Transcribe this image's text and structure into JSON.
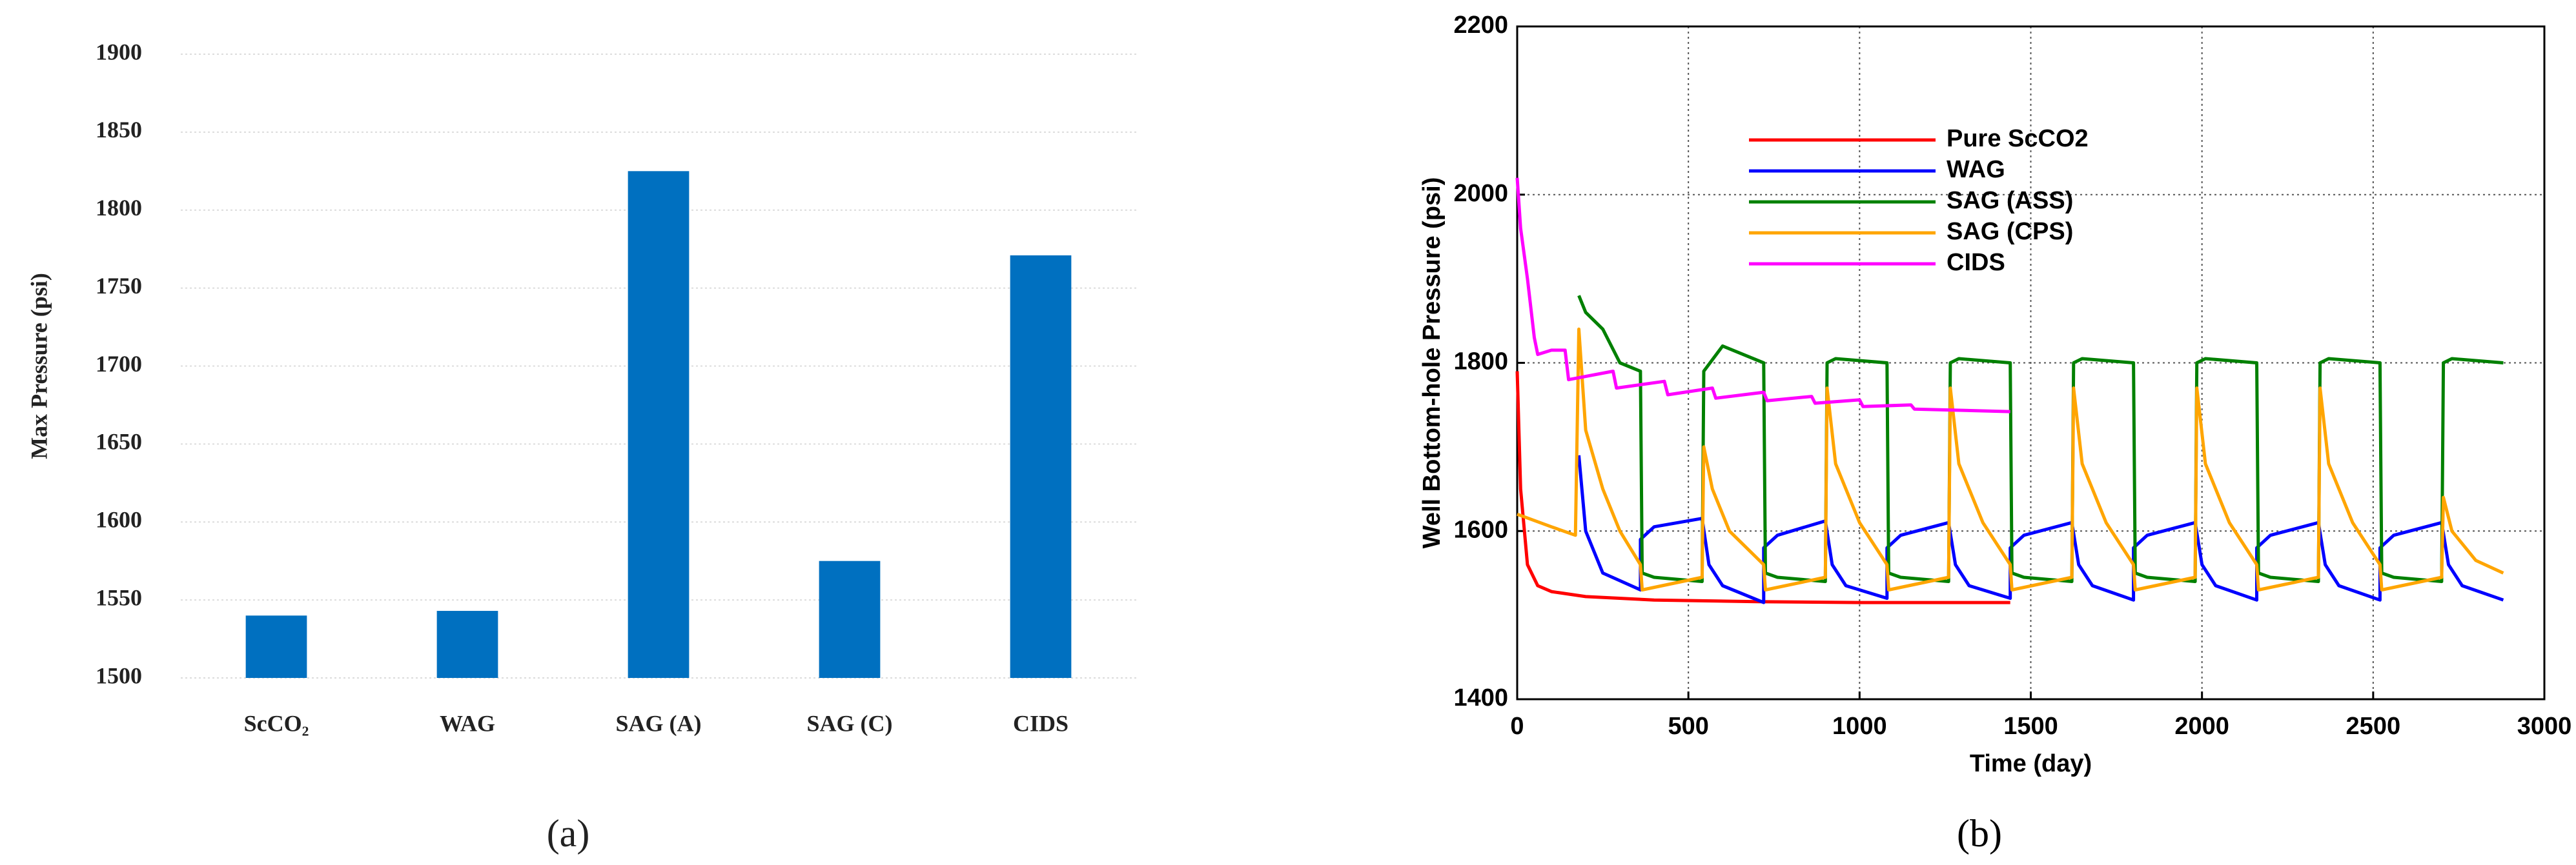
{
  "chart_data": [
    {
      "type": "bar",
      "ylabel": "Max Pressure (psi)",
      "caption": "(a)",
      "categories": [
        "ScCO₂",
        "WAG",
        "SAG (A)",
        "SAG (C)",
        "CIDS"
      ],
      "values": [
        1540,
        1543,
        1825,
        1575,
        1771
      ],
      "color": "#0070c0",
      "ylim": [
        1500,
        1900
      ],
      "yticks": [
        1500,
        1550,
        1600,
        1650,
        1700,
        1750,
        1800,
        1850,
        1900
      ],
      "grid": true
    },
    {
      "type": "line",
      "xlabel": "Time (day)",
      "ylabel": "Well Bottom-hole Pressure (psi)",
      "caption": "(b)",
      "xlim": [
        0,
        3000
      ],
      "xticks": [
        0,
        500,
        1000,
        1500,
        2000,
        2500,
        3000
      ],
      "ylim": [
        1400,
        2200
      ],
      "yticks": [
        1400,
        1600,
        1800,
        2000,
        2200
      ],
      "grid": true,
      "series": [
        {
          "name": "Pure ScCO2",
          "color": "#ff0000",
          "x": [
            0,
            10,
            30,
            60,
            100,
            200,
            400,
            700,
            1000,
            1440
          ],
          "values": [
            1790,
            1650,
            1560,
            1535,
            1528,
            1522,
            1518,
            1516,
            1515,
            1515
          ]
        },
        {
          "name": "WAG",
          "color": "#0000ff",
          "x": [
            180,
            200,
            250,
            360,
            360,
            400,
            540,
            560,
            600,
            720,
            720,
            760,
            900,
            920,
            960,
            1080,
            1080,
            1120,
            1260,
            1280,
            1320,
            1440,
            1440,
            1480,
            1620,
            1640,
            1680,
            1800,
            1800,
            1840,
            1980,
            2000,
            2040,
            2160,
            2160,
            2200,
            2340,
            2360,
            2400,
            2520,
            2520,
            2560,
            2700,
            2720,
            2760,
            2880
          ],
          "values": [
            1690,
            1600,
            1550,
            1530,
            1590,
            1605,
            1615,
            1560,
            1535,
            1515,
            1580,
            1595,
            1612,
            1560,
            1535,
            1520,
            1580,
            1595,
            1610,
            1560,
            1535,
            1520,
            1580,
            1595,
            1610,
            1560,
            1535,
            1518,
            1580,
            1595,
            1610,
            1560,
            1535,
            1518,
            1580,
            1595,
            1610,
            1560,
            1535,
            1518,
            1580,
            1595,
            1610,
            1560,
            1535,
            1518
          ]
        },
        {
          "name": "SAG (ASS)",
          "color": "#008000",
          "x": [
            180,
            200,
            250,
            300,
            360,
            365,
            400,
            540,
            545,
            600,
            720,
            725,
            760,
            900,
            905,
            930,
            1080,
            1085,
            1120,
            1260,
            1265,
            1290,
            1440,
            1445,
            1480,
            1620,
            1625,
            1650,
            1800,
            1805,
            1840,
            1980,
            1985,
            2010,
            2160,
            2165,
            2200,
            2340,
            2345,
            2370,
            2520,
            2525,
            2560,
            2700,
            2705,
            2730,
            2880
          ],
          "values": [
            1880,
            1860,
            1840,
            1800,
            1790,
            1550,
            1545,
            1540,
            1790,
            1820,
            1800,
            1550,
            1545,
            1540,
            1800,
            1805,
            1800,
            1550,
            1545,
            1540,
            1800,
            1805,
            1800,
            1550,
            1545,
            1540,
            1800,
            1805,
            1800,
            1550,
            1545,
            1540,
            1800,
            1805,
            1800,
            1550,
            1545,
            1540,
            1800,
            1805,
            1800,
            1550,
            1545,
            1540,
            1800,
            1805,
            1800
          ]
        },
        {
          "name": "SAG (CPS)",
          "color": "#ffa500",
          "x": [
            0,
            100,
            170,
            180,
            200,
            250,
            300,
            360,
            365,
            540,
            545,
            570,
            620,
            720,
            725,
            900,
            905,
            930,
            1000,
            1080,
            1085,
            1260,
            1265,
            1290,
            1360,
            1440,
            1445,
            1620,
            1625,
            1650,
            1720,
            1800,
            1805,
            1980,
            1985,
            2010,
            2080,
            2160,
            2165,
            2340,
            2345,
            2370,
            2440,
            2520,
            2525,
            2700,
            2705,
            2730,
            2800,
            2880
          ],
          "values": [
            1620,
            1605,
            1595,
            1840,
            1720,
            1650,
            1600,
            1560,
            1530,
            1545,
            1700,
            1650,
            1600,
            1560,
            1530,
            1545,
            1770,
            1680,
            1610,
            1560,
            1530,
            1545,
            1770,
            1680,
            1610,
            1560,
            1530,
            1545,
            1770,
            1680,
            1610,
            1560,
            1530,
            1545,
            1770,
            1680,
            1610,
            1560,
            1530,
            1545,
            1770,
            1680,
            1610,
            1560,
            1530,
            1545,
            1640,
            1600,
            1565,
            1550
          ]
        },
        {
          "name": "CIDS",
          "color": "#ff00ff",
          "x": [
            0,
            10,
            30,
            50,
            60,
            100,
            140,
            150,
            280,
            290,
            430,
            440,
            570,
            580,
            720,
            730,
            860,
            870,
            1000,
            1010,
            1150,
            1160,
            1440
          ],
          "values": [
            2020,
            1960,
            1900,
            1830,
            1810,
            1815,
            1815,
            1780,
            1790,
            1770,
            1778,
            1762,
            1770,
            1758,
            1765,
            1755,
            1760,
            1752,
            1756,
            1748,
            1750,
            1745,
            1742
          ]
        }
      ]
    }
  ]
}
